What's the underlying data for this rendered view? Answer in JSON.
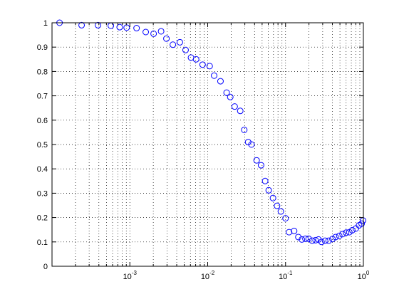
{
  "chart_data": {
    "type": "scatter",
    "xscale": "log",
    "xlim": [
      0.0001,
      1
    ],
    "ylim": [
      0,
      1
    ],
    "grid": true,
    "marker": "open-circle",
    "colors": {
      "marker": "#0000ff",
      "axes": "#000000",
      "grid": "#000000",
      "background": "#ffffff"
    },
    "yticks": [
      "0",
      "0.1",
      "0.2",
      "0.3",
      "0.4",
      "0.5",
      "0.6",
      "0.7",
      "0.8",
      "0.9",
      "1"
    ],
    "xticks": [
      {
        "base": "10",
        "exp": "-3",
        "value": 0.001
      },
      {
        "base": "10",
        "exp": "-2",
        "value": 0.01
      },
      {
        "base": "10",
        "exp": "-1",
        "value": 0.1
      },
      {
        "base": "10",
        "exp": "0",
        "value": 1
      }
    ],
    "x": [
      0.000125,
      0.00024,
      0.00039,
      0.00057,
      0.00074,
      0.00091,
      0.00122,
      0.0016,
      0.00202,
      0.00252,
      0.00295,
      0.00357,
      0.00439,
      0.0052,
      0.0061,
      0.0071,
      0.0086,
      0.0106,
      0.0121,
      0.0146,
      0.0175,
      0.0195,
      0.0222,
      0.0262,
      0.0295,
      0.0331,
      0.0365,
      0.0425,
      0.0485,
      0.0547,
      0.0608,
      0.069,
      0.0778,
      0.0871,
      0.1,
      0.111,
      0.129,
      0.146,
      0.162,
      0.18,
      0.198,
      0.22,
      0.243,
      0.265,
      0.29,
      0.322,
      0.358,
      0.401,
      0.44,
      0.49,
      0.54,
      0.6,
      0.66,
      0.72,
      0.8,
      0.88,
      0.95,
      0.99
    ],
    "y": [
      1.0,
      0.99,
      0.99,
      0.988,
      0.982,
      0.98,
      0.978,
      0.962,
      0.955,
      0.965,
      0.935,
      0.91,
      0.92,
      0.888,
      0.857,
      0.85,
      0.828,
      0.822,
      0.783,
      0.76,
      0.713,
      0.695,
      0.656,
      0.638,
      0.56,
      0.51,
      0.5,
      0.435,
      0.415,
      0.35,
      0.312,
      0.28,
      0.248,
      0.225,
      0.197,
      0.14,
      0.145,
      0.12,
      0.11,
      0.113,
      0.113,
      0.105,
      0.107,
      0.11,
      0.1,
      0.105,
      0.105,
      0.112,
      0.12,
      0.125,
      0.132,
      0.138,
      0.14,
      0.148,
      0.155,
      0.168,
      0.175,
      0.188
    ]
  }
}
